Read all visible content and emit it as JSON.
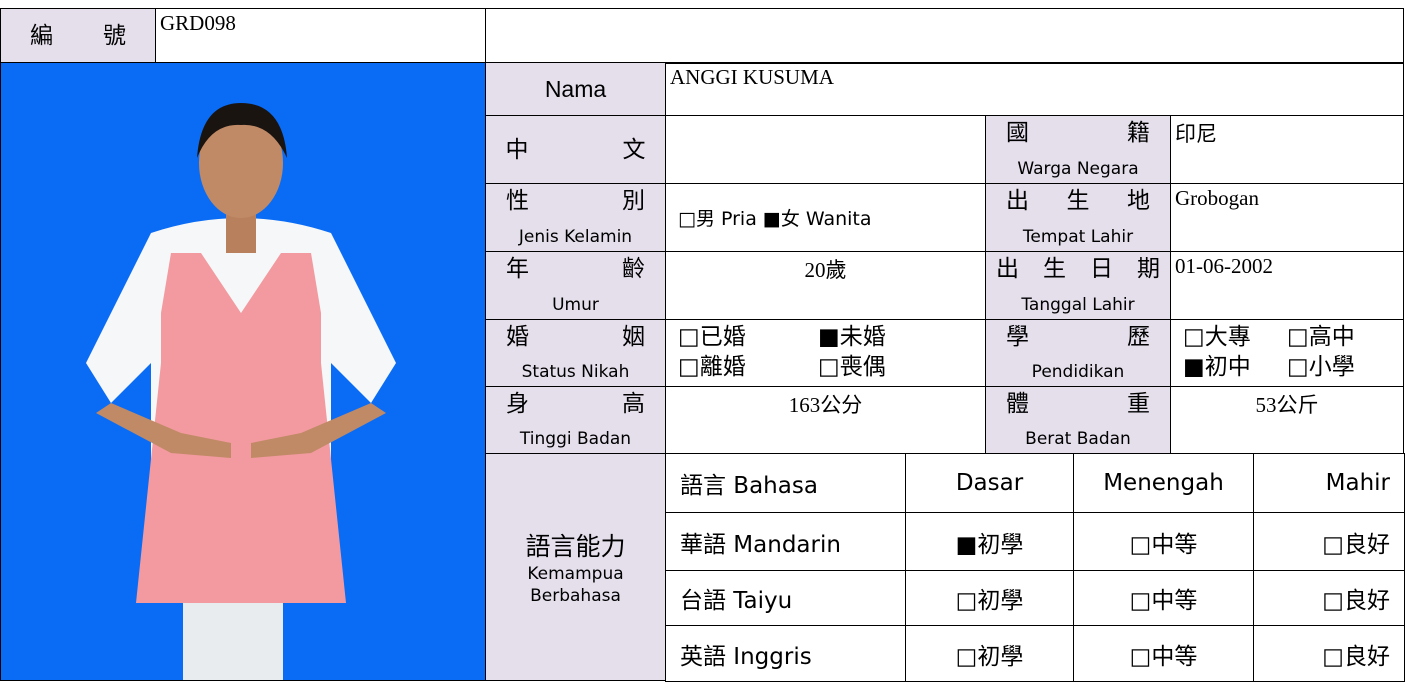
{
  "header": {
    "label": "編號",
    "code": "GRD098"
  },
  "name": {
    "label": "Nama",
    "value": "ANGGI KUSUMA"
  },
  "chinese_name": {
    "label": "中文"
  },
  "nationality": {
    "label_zh": "國籍",
    "label_id": "Warga Negara",
    "value": "印尼"
  },
  "gender": {
    "label_zh": "性別",
    "label_id": "Jenis Kelamin",
    "value": "□男 Pria ■女 Wanita"
  },
  "birthplace": {
    "label_zh": "出生地",
    "label_id": "Tempat Lahir",
    "value": "Grobogan"
  },
  "age": {
    "label_zh": "年齡",
    "label_id": "Umur",
    "value": "20歲"
  },
  "birthdate": {
    "label_zh": "出生日期",
    "label_id": "Tanggal Lahir",
    "value": "01-06-2002"
  },
  "marital": {
    "label_zh": "婚姻",
    "label_id": "Status Nikah",
    "options": [
      "□已婚",
      "■未婚",
      "□離婚",
      "□喪偶"
    ]
  },
  "education": {
    "label_zh": "學歷",
    "label_id": "Pendidikan",
    "options": [
      "□大專",
      "□高中",
      "■初中",
      "□小學"
    ]
  },
  "height": {
    "label_zh": "身高",
    "label_id": "Tinggi Badan",
    "value": "163公分"
  },
  "weight": {
    "label_zh": "體重",
    "label_id": "Berat Badan",
    "value": "53公斤"
  },
  "language": {
    "label_zh": "語言能力",
    "label_id": "Kemampua Berbahasa",
    "header": [
      "語言 Bahasa",
      "Dasar",
      "Menengah",
      "Mahir"
    ],
    "rows": [
      [
        "華語 Mandarin",
        "■初學",
        "□中等",
        "□良好"
      ],
      [
        "台語 Taiyu",
        "□初學",
        "□中等",
        "□良好"
      ],
      [
        "英語 Inggris",
        "□初學",
        "□中等",
        "□良好"
      ]
    ]
  }
}
